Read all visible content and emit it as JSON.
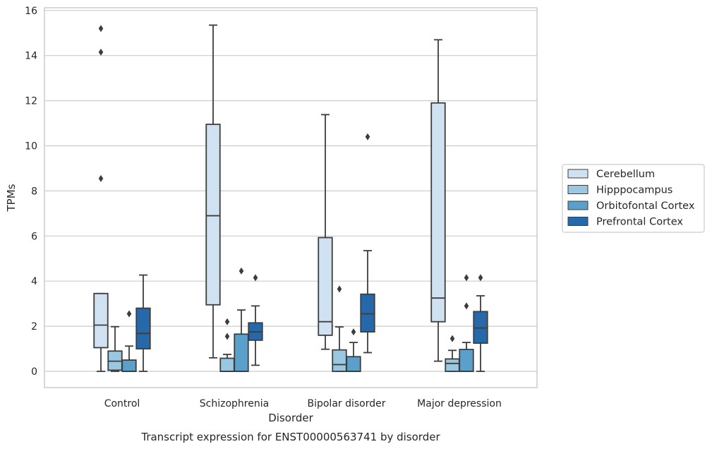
{
  "chart_data": {
    "type": "boxplot",
    "title": "Transcript expression for ENST00000563741 by disorder",
    "xlabel": "Disorder",
    "ylabel": "TPMs",
    "ylim": [
      -0.7,
      16.1
    ],
    "yticks": [
      0,
      2,
      4,
      6,
      8,
      10,
      12,
      14,
      16
    ],
    "grid": true,
    "legend_position": "right",
    "categories": [
      "Control",
      "Schizophrenia",
      "Bipolar disorder",
      "Major depression"
    ],
    "series": [
      {
        "name": "Cerebellum",
        "color": "#d0e1f2",
        "boxes": [
          {
            "min": 0.0,
            "q1": 1.05,
            "median": 2.05,
            "q3": 3.45,
            "max": 3.45,
            "outliers": [
              8.55,
              14.15,
              15.2
            ]
          },
          {
            "min": 0.6,
            "q1": 2.95,
            "median": 6.9,
            "q3": 10.95,
            "max": 15.35,
            "outliers": []
          },
          {
            "min": 0.98,
            "q1": 1.6,
            "median": 2.2,
            "q3": 5.93,
            "max": 11.38,
            "outliers": []
          },
          {
            "min": 0.45,
            "q1": 2.2,
            "median": 3.25,
            "q3": 11.9,
            "max": 14.7,
            "outliers": []
          }
        ]
      },
      {
        "name": "Hipppocampus",
        "color": "#9ac8e0",
        "boxes": [
          {
            "min": 0.0,
            "q1": 0.05,
            "median": 0.45,
            "q3": 0.9,
            "max": 1.98,
            "outliers": []
          },
          {
            "min": 0.0,
            "q1": 0.0,
            "median": 0.0,
            "q3": 0.58,
            "max": 0.75,
            "outliers": [
              1.55,
              2.2
            ]
          },
          {
            "min": 0.0,
            "q1": 0.0,
            "median": 0.3,
            "q3": 0.95,
            "max": 1.97,
            "outliers": [
              3.65
            ]
          },
          {
            "min": 0.0,
            "q1": 0.0,
            "median": 0.35,
            "q3": 0.55,
            "max": 0.93,
            "outliers": [
              1.45
            ]
          }
        ]
      },
      {
        "name": "Orbitofontal Cortex",
        "color": "#5b9fcb",
        "boxes": [
          {
            "min": 0.0,
            "q1": 0.0,
            "median": 0.0,
            "q3": 0.5,
            "max": 1.12,
            "outliers": [
              2.55
            ]
          },
          {
            "min": 0.0,
            "q1": 0.0,
            "median": 0.0,
            "q3": 1.65,
            "max": 2.72,
            "outliers": [
              4.45
            ]
          },
          {
            "min": 0.0,
            "q1": 0.0,
            "median": 0.0,
            "q3": 0.65,
            "max": 1.28,
            "outliers": [
              1.75
            ]
          },
          {
            "min": 0.0,
            "q1": 0.0,
            "median": 0.0,
            "q3": 0.97,
            "max": 1.28,
            "outliers": [
              2.9,
              4.15
            ]
          }
        ]
      },
      {
        "name": "Prefrontal Cortex",
        "color": "#2669ab",
        "boxes": [
          {
            "min": 0.0,
            "q1": 1.0,
            "median": 1.68,
            "q3": 2.8,
            "max": 4.27,
            "outliers": []
          },
          {
            "min": 0.27,
            "q1": 1.38,
            "median": 1.75,
            "q3": 2.15,
            "max": 2.9,
            "outliers": [
              4.15
            ]
          },
          {
            "min": 0.83,
            "q1": 1.75,
            "median": 2.55,
            "q3": 3.42,
            "max": 5.35,
            "outliers": [
              10.4
            ]
          },
          {
            "min": 0.0,
            "q1": 1.25,
            "median": 1.92,
            "q3": 2.65,
            "max": 3.35,
            "outliers": [
              4.15
            ]
          }
        ]
      }
    ]
  }
}
